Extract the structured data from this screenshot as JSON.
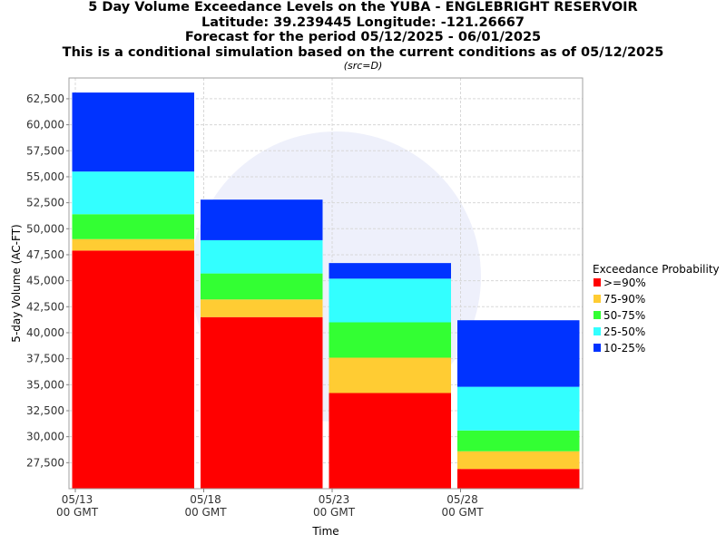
{
  "header": {
    "title_lines": [
      "5 Day Volume Exceedance Levels on the YUBA - ENGLEBRIGHT RESERVOIR",
      "Latitude: 39.239445 Longitude: -121.26667",
      "Forecast for the period 05/12/2025 - 06/01/2025",
      "This is a conditional simulation based on the current conditions as of 05/12/2025"
    ],
    "source_note": "(src=D)"
  },
  "chart_data": {
    "type": "bar",
    "stacked": true,
    "categories": [
      "05/13 00 GMT",
      "05/18 00 GMT",
      "05/23 00 GMT",
      "05/28 00 GMT"
    ],
    "x_tick_labels": [
      [
        "05/13",
        "00 GMT"
      ],
      [
        "05/18",
        "00 GMT"
      ],
      [
        "05/23",
        "00 GMT"
      ],
      [
        "05/28",
        "00 GMT"
      ]
    ],
    "xlabel": "Time",
    "ylabel": "5-day Volume (AC-FT)",
    "ylim": [
      25000,
      64500
    ],
    "yticks": [
      27500,
      30000,
      32500,
      35000,
      37500,
      40000,
      42500,
      45000,
      47500,
      50000,
      52500,
      55000,
      57500,
      60000,
      62500
    ],
    "ytick_labels": [
      "27,500",
      "30,000",
      "32,500",
      "35,000",
      "37,500",
      "40,000",
      "42,500",
      "45,000",
      "47,500",
      "50,000",
      "52,500",
      "55,000",
      "57,500",
      "60,000",
      "62,500"
    ],
    "grid": true,
    "legend_title": "Exceedance Probability",
    "legend_position": "right",
    "series": [
      {
        "name": ">=90%",
        "color": "#ff0000",
        "top_values": [
          47900,
          41500,
          34200,
          26900
        ]
      },
      {
        "name": "75-90%",
        "color": "#ffcc33",
        "top_values": [
          49000,
          43200,
          37600,
          28600
        ]
      },
      {
        "name": "50-75%",
        "color": "#33ff33",
        "top_values": [
          51400,
          45700,
          41000,
          30600
        ]
      },
      {
        "name": "25-50%",
        "color": "#33ffff",
        "top_values": [
          55500,
          48900,
          45200,
          34800
        ]
      },
      {
        "name": "10-25%",
        "color": "#0033ff",
        "top_values": [
          63100,
          52800,
          46700,
          41200
        ]
      }
    ]
  }
}
